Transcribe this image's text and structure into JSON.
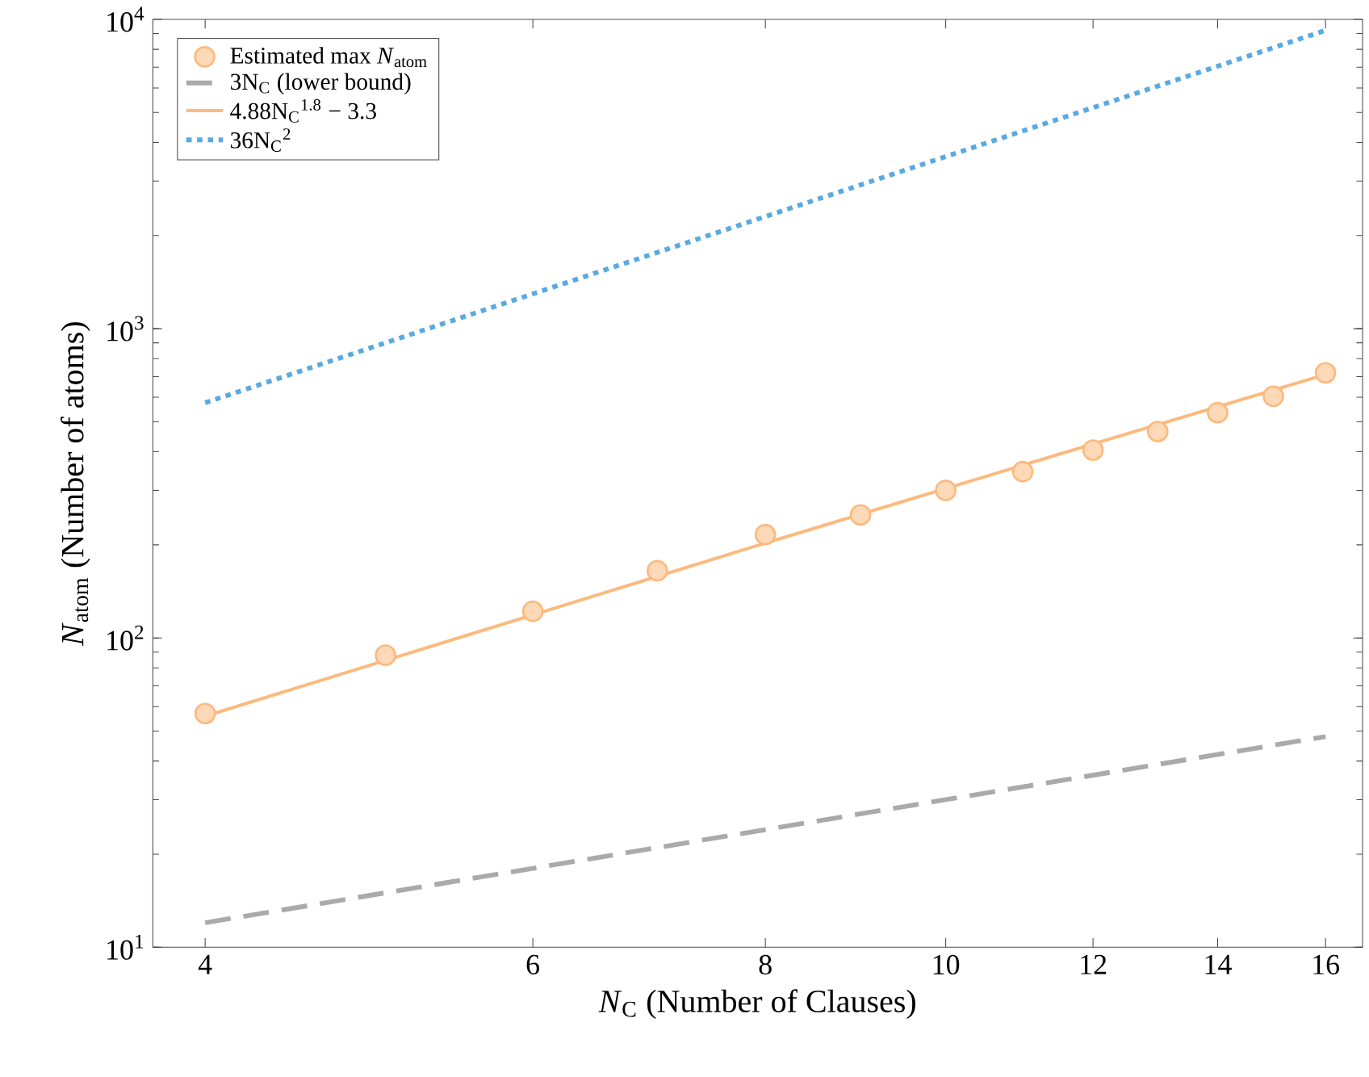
{
  "chart_data": {
    "type": "line",
    "xlabel": "*N*$_{C}$ (Number of Clauses)",
    "ylabel": "*N*$_{atom}$ (Number of atoms)",
    "log": "xy",
    "xlim": [
      3.75,
      16.75
    ],
    "ylim": [
      10,
      10000
    ],
    "xticks": [
      4,
      6,
      8,
      10,
      12,
      14,
      16
    ],
    "yticks": [
      {
        "value": 10,
        "label": "10$^{1}$"
      },
      {
        "value": 100,
        "label": "10$^{2}$"
      },
      {
        "value": 1000,
        "label": "10$^{3}$"
      },
      {
        "value": 10000,
        "label": "10$^{4}$"
      }
    ],
    "legend": "top left",
    "grid": false,
    "series": [
      {
        "name": "Estimated max *N*$_{atom}$",
        "type": "scatter",
        "marker": "circle",
        "color": "#fdb97d",
        "x": [
          4,
          5,
          6,
          7,
          8,
          9,
          10,
          11,
          12,
          13,
          14,
          15,
          16
        ],
        "values": [
          57,
          88,
          122,
          165,
          216,
          250,
          300,
          345,
          405,
          465,
          535,
          605,
          720
        ]
      },
      {
        "name": "3N$_{C}$ (lower bound)",
        "marker": "none",
        "line_style": "dashed",
        "color": "#aaaaaa",
        "x": [
          4,
          16
        ],
        "values": [
          12,
          48
        ]
      },
      {
        "name": "4.88N$_{C}$$^{1.8}$ − 3.3",
        "marker": "none",
        "line_style": "solid",
        "color": "#fdb97d",
        "x": [
          4,
          8,
          12,
          16
        ],
        "values": [
          55.9,
          202.7,
          423.9,
          710.8
        ]
      },
      {
        "name": "36N$_{C}$$^{2}$",
        "marker": "none",
        "line_style": "dotted",
        "color": "#5aaae0",
        "x": [
          4,
          16
        ],
        "values": [
          576,
          9216
        ]
      }
    ]
  }
}
